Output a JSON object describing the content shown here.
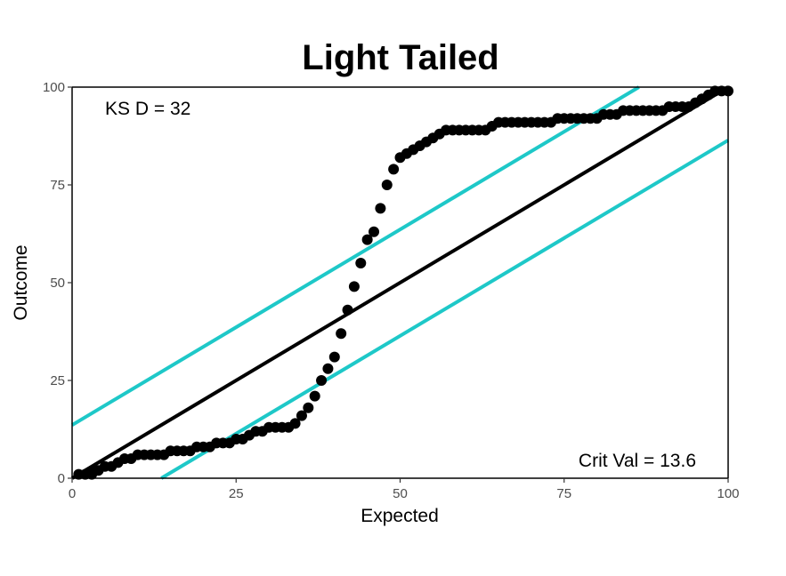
{
  "chart_data": {
    "type": "scatter",
    "title": "Light Tailed",
    "xlabel": "Expected",
    "ylabel": "Outcome",
    "xlim": [
      0,
      100
    ],
    "ylim": [
      0,
      100
    ],
    "xticks": [
      0,
      25,
      50,
      75,
      100
    ],
    "yticks": [
      0,
      25,
      50,
      75,
      100
    ],
    "grid": false,
    "annotations": {
      "ks_d": "KS D =  32",
      "crit_val": "Crit Val =  13.6"
    },
    "reference_line": {
      "from": [
        0,
        0
      ],
      "to": [
        100,
        100
      ],
      "color": "#000000"
    },
    "critical_band": {
      "offset": 13.6,
      "color": "#1ec8c8"
    },
    "points": {
      "x": [
        1,
        2,
        3,
        3.5,
        4,
        5,
        6,
        7,
        8,
        9,
        10,
        11,
        12,
        13,
        14,
        15,
        16,
        17,
        18,
        19,
        20,
        21,
        22,
        23,
        24,
        25,
        26,
        27,
        28,
        29,
        30,
        31,
        32,
        33,
        34,
        35,
        36,
        37,
        38,
        39,
        40,
        41,
        42,
        43,
        44,
        45,
        46,
        47,
        48,
        49,
        50,
        51,
        52,
        53,
        54,
        55,
        56,
        57,
        58,
        59,
        60,
        61,
        62,
        63,
        64,
        65,
        66,
        67,
        68,
        69,
        70,
        71,
        72,
        73,
        74,
        75,
        76,
        77,
        78,
        79,
        80,
        81,
        82,
        83,
        84,
        85,
        86,
        87,
        88,
        89,
        90,
        91,
        92,
        93,
        94,
        95,
        96,
        97,
        98,
        99,
        100
      ],
      "y": [
        1,
        1,
        1,
        2,
        2,
        3,
        3,
        4,
        5,
        5,
        6,
        6,
        6,
        6,
        6,
        7,
        7,
        7,
        7,
        8,
        8,
        8,
        9,
        9,
        9,
        10,
        10,
        11,
        12,
        12,
        13,
        13,
        13,
        13,
        14,
        16,
        18,
        21,
        25,
        28,
        31,
        37,
        43,
        49,
        55,
        61,
        63,
        69,
        75,
        79,
        82,
        83,
        84,
        85,
        86,
        87,
        88,
        89,
        89,
        89,
        89,
        89,
        89,
        89,
        90,
        91,
        91,
        91,
        91,
        91,
        91,
        91,
        91,
        91,
        92,
        92,
        92,
        92,
        92,
        92,
        92,
        93,
        93,
        93,
        94,
        94,
        94,
        94,
        94,
        94,
        94,
        95,
        95,
        95,
        95,
        96,
        97,
        98,
        99,
        99,
        99
      ]
    }
  }
}
